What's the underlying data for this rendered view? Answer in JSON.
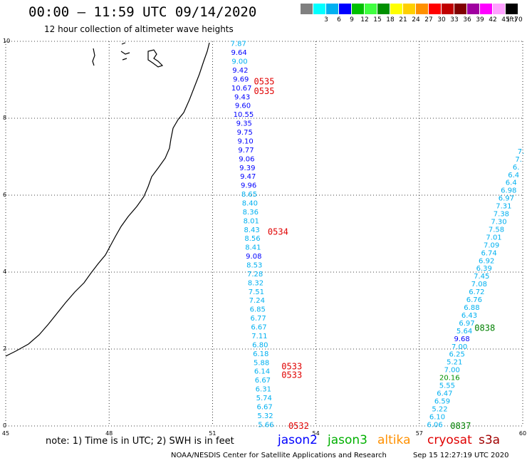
{
  "header": {
    "title": "00:00 – 11:59 UTC 09/14/2020",
    "subtitle": "12 hour collection of altimeter wave heights"
  },
  "color_scale": {
    "unit": "(ft)",
    "bins": [
      {
        "label": "",
        "color": "#808080"
      },
      {
        "label": "3",
        "color": "#00ffff"
      },
      {
        "label": "6",
        "color": "#00b0f0"
      },
      {
        "label": "9",
        "color": "#0000ff"
      },
      {
        "label": "12",
        "color": "#00c000"
      },
      {
        "label": "15",
        "color": "#40ff40"
      },
      {
        "label": "18",
        "color": "#009000"
      },
      {
        "label": "21",
        "color": "#ffff00"
      },
      {
        "label": "24",
        "color": "#ffd000"
      },
      {
        "label": "27",
        "color": "#ff9000"
      },
      {
        "label": "30",
        "color": "#ff0000"
      },
      {
        "label": "33",
        "color": "#c00000"
      },
      {
        "label": "36",
        "color": "#800000"
      },
      {
        "label": "39",
        "color": "#a000a0"
      },
      {
        "label": "42",
        "color": "#ff00ff"
      },
      {
        "label": "45",
        "color": "#ffa0ff"
      },
      {
        "label": "70",
        "color": "#000000"
      }
    ]
  },
  "map": {
    "x_ticks": [
      "45",
      "48",
      "51",
      "54",
      "57",
      "60"
    ],
    "y_ticks": [
      "0",
      "2",
      "4",
      "6",
      "8",
      "10"
    ],
    "lon_range": [
      45,
      60
    ],
    "lat_range": [
      0,
      10
    ]
  },
  "tracks": [
    {
      "name": "track-a",
      "lon_start": 51.75,
      "lat_start": 9.95,
      "lon_end": 52.55,
      "lat_end": 0.05,
      "values": [
        {
          "v": "7.87",
          "c": "#00b0f0"
        },
        {
          "v": "9.64",
          "c": "#0000ff"
        },
        {
          "v": "9.00",
          "c": "#00b0f0"
        },
        {
          "v": "9.42",
          "c": "#0000ff"
        },
        {
          "v": "9.69",
          "c": "#0000ff"
        },
        {
          "v": "10.67",
          "c": "#0000ff"
        },
        {
          "v": "9.43",
          "c": "#0000ff"
        },
        {
          "v": "9.60",
          "c": "#0000ff"
        },
        {
          "v": "10.55",
          "c": "#0000ff"
        },
        {
          "v": "9.35",
          "c": "#0000ff"
        },
        {
          "v": "9.75",
          "c": "#0000ff"
        },
        {
          "v": "9.10",
          "c": "#0000ff"
        },
        {
          "v": "9.77",
          "c": "#0000ff"
        },
        {
          "v": "9.06",
          "c": "#0000ff"
        },
        {
          "v": "9.39",
          "c": "#0000ff"
        },
        {
          "v": "9.47",
          "c": "#0000ff"
        },
        {
          "v": "9.96",
          "c": "#0000ff"
        },
        {
          "v": "8.65",
          "c": "#00b0f0"
        },
        {
          "v": "8.40",
          "c": "#00b0f0"
        },
        {
          "v": "8.36",
          "c": "#00b0f0"
        },
        {
          "v": "8.01",
          "c": "#00b0f0"
        },
        {
          "v": "8.43",
          "c": "#00b0f0"
        },
        {
          "v": "8.56",
          "c": "#00b0f0"
        },
        {
          "v": "8.41",
          "c": "#00b0f0"
        },
        {
          "v": "9.08",
          "c": "#0000ff"
        },
        {
          "v": "8.53",
          "c": "#00b0f0"
        },
        {
          "v": "7.28",
          "c": "#00b0f0"
        },
        {
          "v": "8.32",
          "c": "#00b0f0"
        },
        {
          "v": "7.51",
          "c": "#00b0f0"
        },
        {
          "v": "7.24",
          "c": "#00b0f0"
        },
        {
          "v": "6.85",
          "c": "#00b0f0"
        },
        {
          "v": "6.77",
          "c": "#00b0f0"
        },
        {
          "v": "6.67",
          "c": "#00b0f0"
        },
        {
          "v": "7.11",
          "c": "#00b0f0"
        },
        {
          "v": "6.80",
          "c": "#00b0f0"
        },
        {
          "v": "6.18",
          "c": "#00b0f0"
        },
        {
          "v": "5.88",
          "c": "#00b0f0"
        },
        {
          "v": "6.14",
          "c": "#00b0f0"
        },
        {
          "v": "6.67",
          "c": "#00b0f0"
        },
        {
          "v": "6.31",
          "c": "#00b0f0"
        },
        {
          "v": "5.74",
          "c": "#00b0f0"
        },
        {
          "v": "6.67",
          "c": "#00b0f0"
        },
        {
          "v": "5.32",
          "c": "#00b0f0"
        },
        {
          "v": "5.66",
          "c": "#00b0f0"
        }
      ]
    },
    {
      "name": "track-b",
      "lon_start": 59.95,
      "lat_start": 7.15,
      "lon_end": 57.45,
      "lat_end": 0.05,
      "values": [
        {
          "v": "7.",
          "c": "#00b0f0"
        },
        {
          "v": "7.",
          "c": "#00b0f0"
        },
        {
          "v": "6.",
          "c": "#00b0f0"
        },
        {
          "v": "6.4",
          "c": "#00b0f0"
        },
        {
          "v": "6.4",
          "c": "#00b0f0"
        },
        {
          "v": "6.98",
          "c": "#00b0f0"
        },
        {
          "v": "6.97",
          "c": "#00b0f0"
        },
        {
          "v": "7.31",
          "c": "#00b0f0"
        },
        {
          "v": "7.38",
          "c": "#00b0f0"
        },
        {
          "v": "7.30",
          "c": "#00b0f0"
        },
        {
          "v": "7.58",
          "c": "#00b0f0"
        },
        {
          "v": "7.01",
          "c": "#00b0f0"
        },
        {
          "v": "7.09",
          "c": "#00b0f0"
        },
        {
          "v": "6.74",
          "c": "#00b0f0"
        },
        {
          "v": "6.92",
          "c": "#00b0f0"
        },
        {
          "v": "6.39",
          "c": "#00b0f0"
        },
        {
          "v": "7.45",
          "c": "#00b0f0"
        },
        {
          "v": "7.08",
          "c": "#00b0f0"
        },
        {
          "v": "6.72",
          "c": "#00b0f0"
        },
        {
          "v": "6.76",
          "c": "#00b0f0"
        },
        {
          "v": "6.88",
          "c": "#00b0f0"
        },
        {
          "v": "6.43",
          "c": "#00b0f0"
        },
        {
          "v": "6.97",
          "c": "#00b0f0"
        },
        {
          "v": "5.64",
          "c": "#00b0f0"
        },
        {
          "v": "9.68",
          "c": "#0000ff"
        },
        {
          "v": "7.00",
          "c": "#00b0f0"
        },
        {
          "v": "6.25",
          "c": "#00b0f0"
        },
        {
          "v": "5.21",
          "c": "#00b0f0"
        },
        {
          "v": "7.00",
          "c": "#00b0f0"
        },
        {
          "v": "20.16",
          "c": "#009000"
        },
        {
          "v": "5.55",
          "c": "#00b0f0"
        },
        {
          "v": "6.47",
          "c": "#00b0f0"
        },
        {
          "v": "6.59",
          "c": "#00b0f0"
        },
        {
          "v": "5.22",
          "c": "#00b0f0"
        },
        {
          "v": "6.10",
          "c": "#00b0f0"
        },
        {
          "v": "6.06",
          "c": "#00b0f0"
        }
      ]
    }
  ],
  "time_labels": [
    {
      "text": "0535",
      "lon": 52.5,
      "lat": 8.95,
      "color": "#e00000"
    },
    {
      "text": "0535",
      "lon": 52.5,
      "lat": 8.7,
      "color": "#e00000"
    },
    {
      "text": "0534",
      "lon": 52.9,
      "lat": 5.05,
      "color": "#e00000"
    },
    {
      "text": "0533",
      "lon": 53.3,
      "lat": 1.55,
      "color": "#e00000"
    },
    {
      "text": "0533",
      "lon": 53.3,
      "lat": 1.32,
      "color": "#e00000"
    },
    {
      "text": "0532",
      "lon": 53.5,
      "lat": 0.0,
      "color": "#e00000"
    },
    {
      "text": "0838",
      "lon": 58.9,
      "lat": 2.55,
      "color": "#008000"
    },
    {
      "text": "0837",
      "lon": 58.2,
      "lat": 0.0,
      "color": "#008000"
    }
  ],
  "footer": {
    "note": "note: 1) Time is in UTC; 2) SWH is in feet",
    "satellites": [
      {
        "name": "jason2",
        "color": "#0000ff"
      },
      {
        "name": "jason3",
        "color": "#00b000"
      },
      {
        "name": "altika",
        "color": "#ff9000"
      },
      {
        "name": "cryosat",
        "color": "#e00000"
      },
      {
        "name": "s3a",
        "color": "#a00000"
      }
    ],
    "credit": "NOAA/NESDIS Center for Satellite Applications and Research",
    "timestamp": "Sep 15 12:27:19 UTC 2020"
  }
}
